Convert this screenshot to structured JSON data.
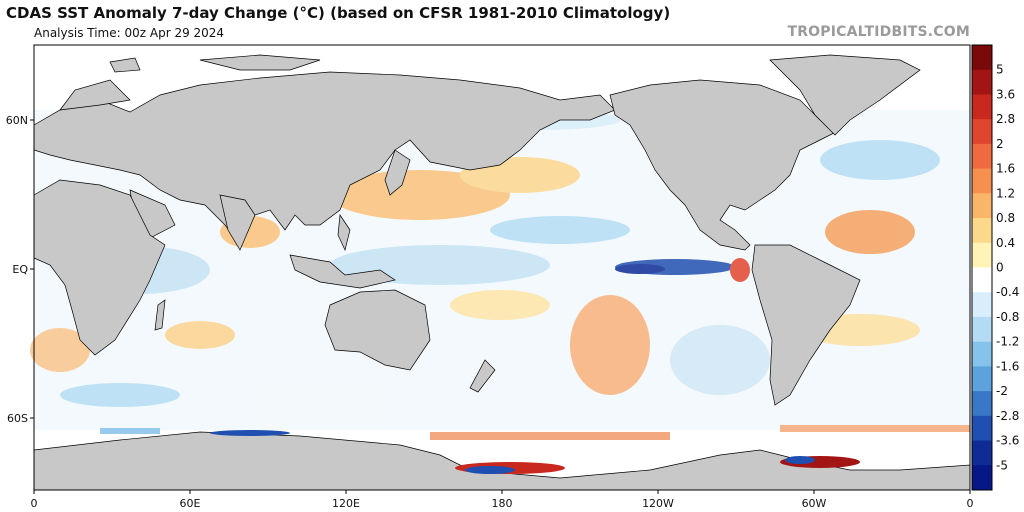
{
  "header": {
    "title": "CDAS SST Anomaly 7-day Change (°C) (based on CFSR 1981-2010 Climatology)",
    "analysis_time": "Analysis Time: 00z Apr 29 2024",
    "brand": "TROPICALTIDBITS.COM"
  },
  "map": {
    "lat_labels": [
      "60N",
      "EQ",
      "60S"
    ],
    "lon_labels": [
      "0",
      "60E",
      "120E",
      "180",
      "120W",
      "60W",
      "0"
    ],
    "land_color": "#c8c8c8",
    "ocean_color": "#ffffff",
    "border_color": "#000000"
  },
  "colorbar": {
    "labels": [
      "5",
      "3.6",
      "2.8",
      "2",
      "1.6",
      "1.2",
      "0.8",
      "0.4",
      "0",
      "-0.4",
      "-0.8",
      "-1.2",
      "-1.6",
      "-2",
      "-2.8",
      "-3.6",
      "-5"
    ],
    "colors": [
      "#7a0a0a",
      "#a31515",
      "#c8281e",
      "#e0452e",
      "#ef6a3f",
      "#f5904f",
      "#f9b668",
      "#fcd98a",
      "#fff3b8",
      "#ffffff",
      "#d8eefa",
      "#b3dcf4",
      "#86c3ec",
      "#5ca3dd",
      "#3978c6",
      "#1f4fb0",
      "#0e2b96",
      "#061887"
    ]
  }
}
